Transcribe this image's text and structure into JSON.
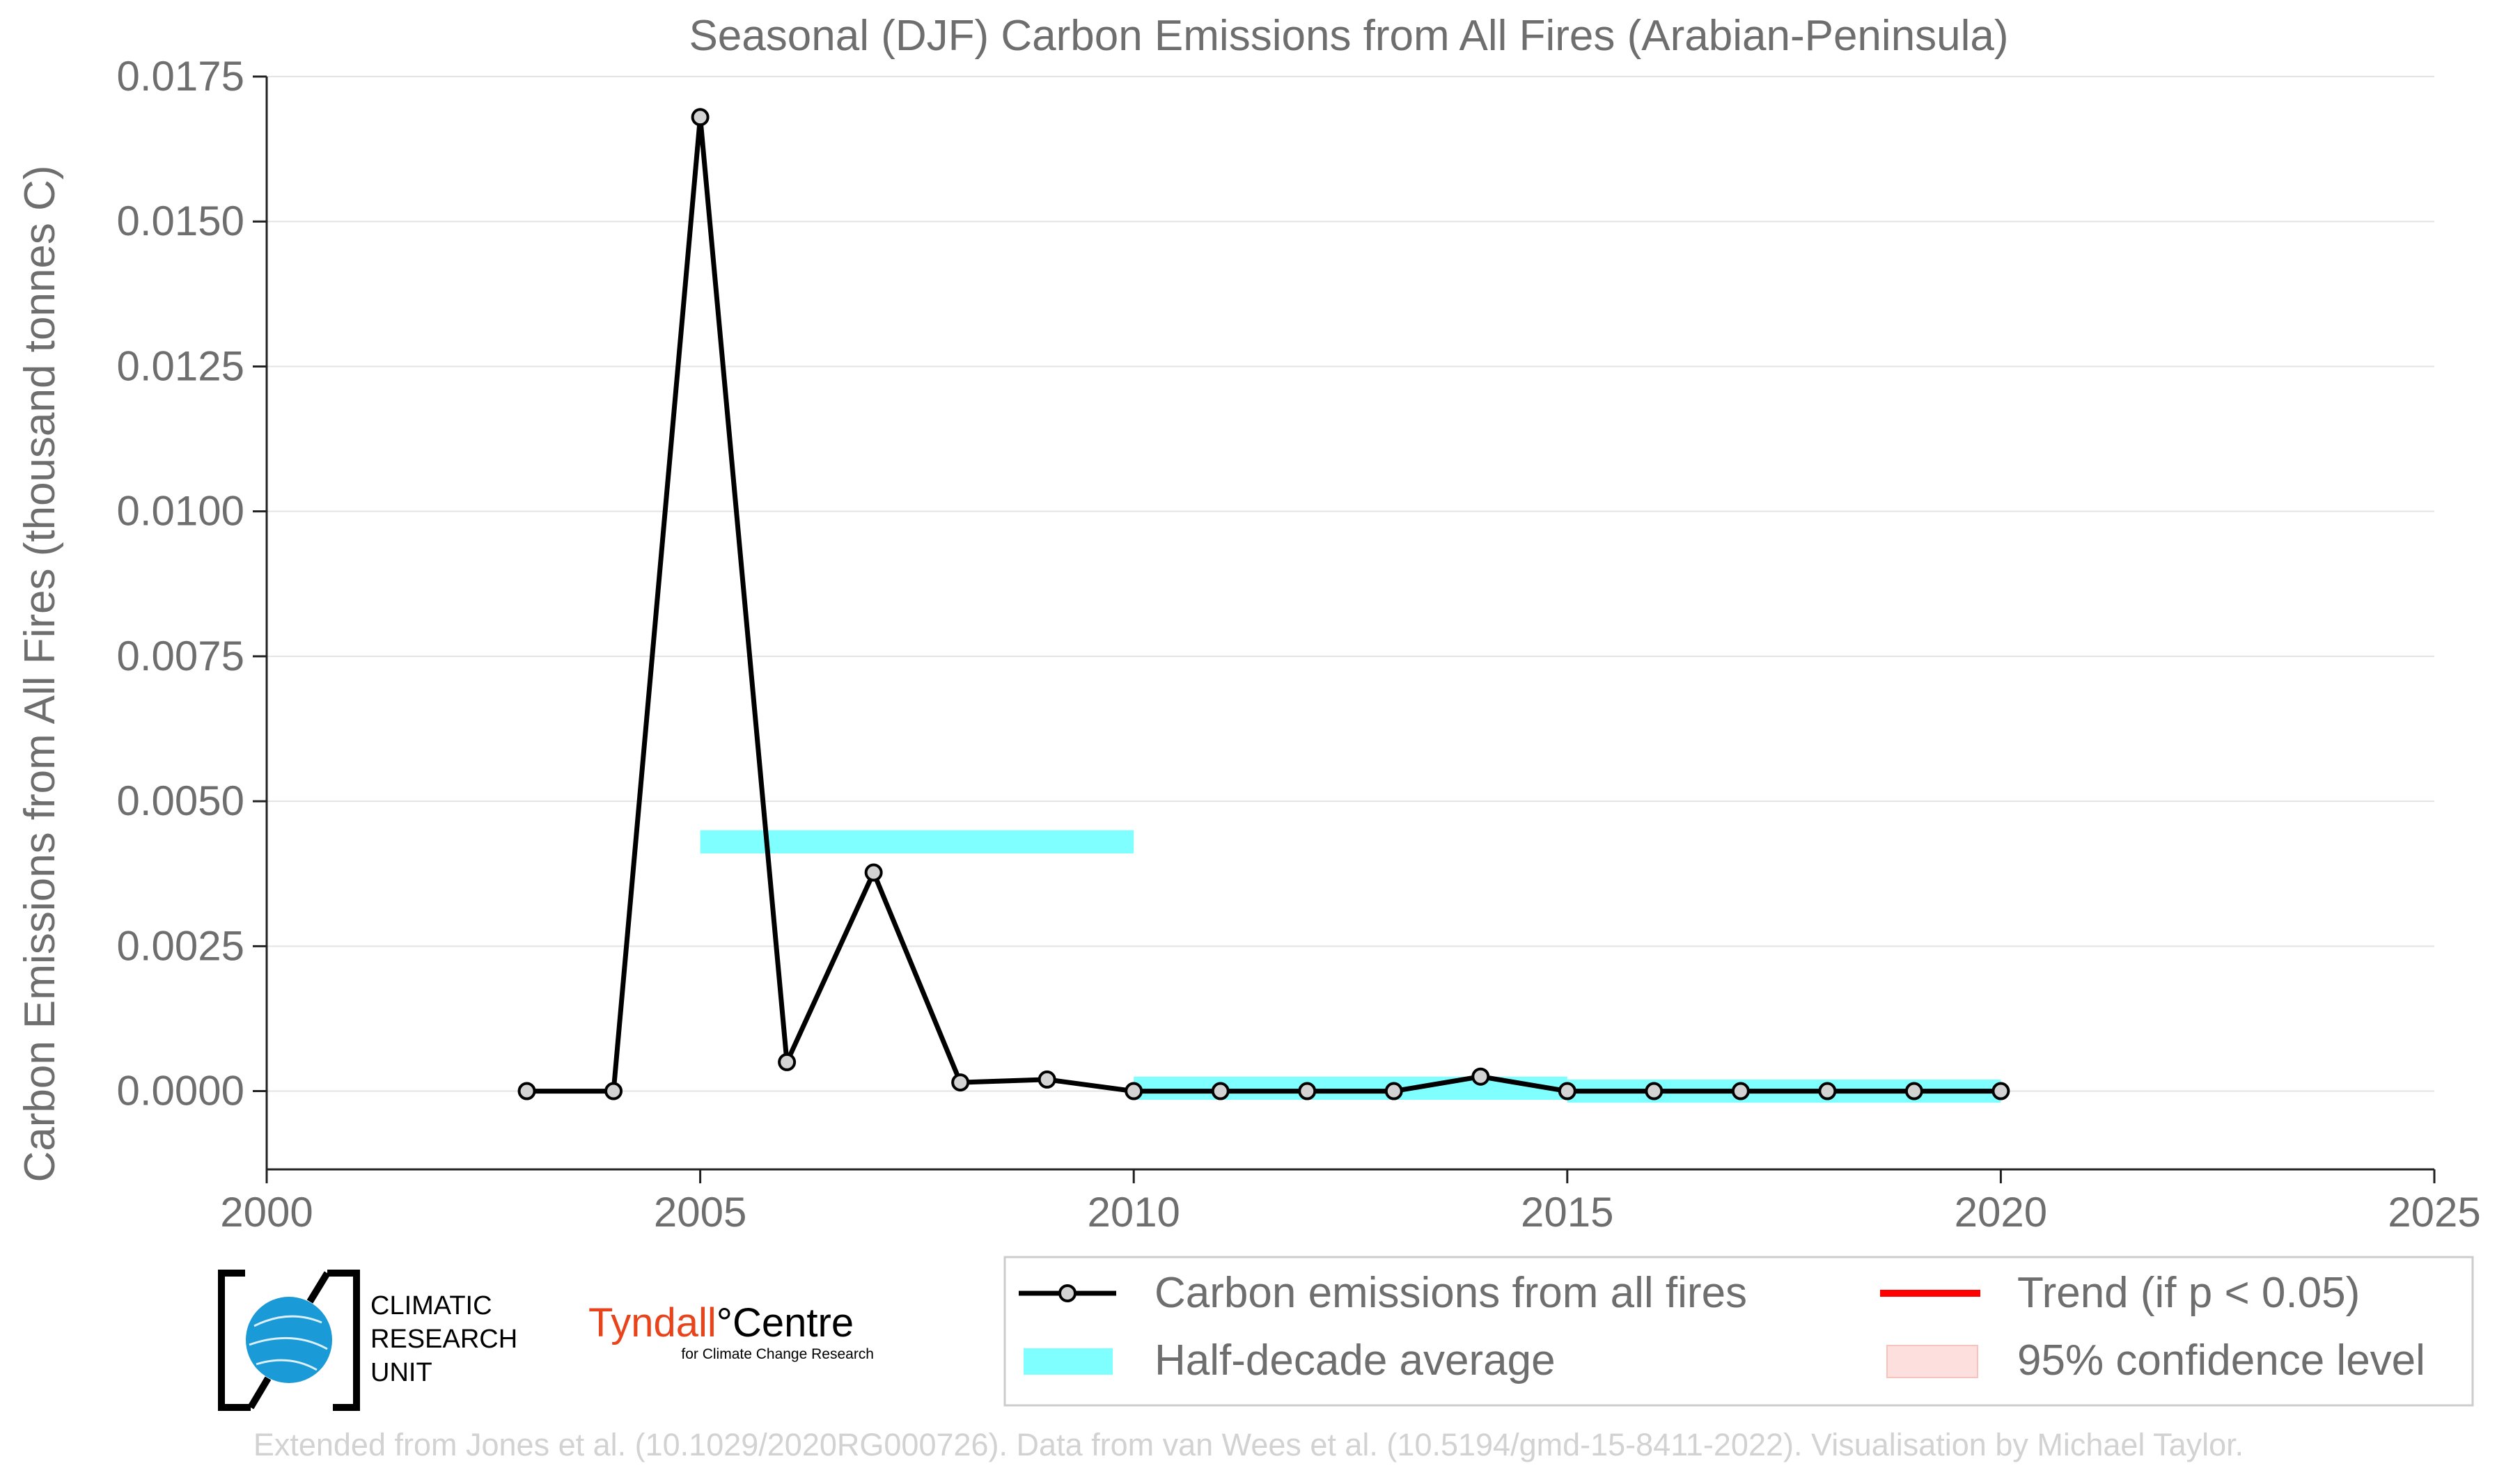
{
  "chart_data": {
    "type": "line",
    "title": "Seasonal (DJF) Carbon Emissions from All Fires (Arabian-Peninsula)",
    "xlabel": "",
    "ylabel": "Carbon Emissions from All Fires (thousand tonnes C)",
    "xlim": [
      2000,
      2025
    ],
    "ylim": [
      -0.00135,
      0.0175
    ],
    "xticks": [
      2000,
      2005,
      2010,
      2015,
      2020,
      2025
    ],
    "yticks": [
      0.0,
      0.0025,
      0.005,
      0.0075,
      0.01,
      0.0125,
      0.015,
      0.0175
    ],
    "ytick_labels": [
      "0.0000",
      "0.0025",
      "0.0050",
      "0.0075",
      "0.0100",
      "0.0125",
      "0.0150",
      "0.0175"
    ],
    "grid": "horizontal",
    "series": [
      {
        "name": "Carbon emissions from all fires",
        "color": "#000000",
        "marker_fill": "#d3d3d3",
        "x": [
          2003,
          2004,
          2005,
          2006,
          2007,
          2008,
          2009,
          2010,
          2011,
          2012,
          2013,
          2014,
          2015,
          2016,
          2017,
          2018,
          2019,
          2020
        ],
        "y": [
          0.0,
          0.0,
          0.0168,
          0.0005,
          0.00377,
          0.00015,
          0.0002,
          0.0,
          0.0,
          0.0,
          0.0,
          0.00025,
          0.0,
          0.0,
          0.0,
          0.0,
          0.0,
          0.0
        ]
      }
    ],
    "half_decade_average": {
      "name": "Half-decade average",
      "color": "#7fffff",
      "segments": [
        {
          "x_start": 2005,
          "x_end": 2010,
          "value": 0.0043
        },
        {
          "x_start": 2010,
          "x_end": 2015,
          "value": 5e-05
        },
        {
          "x_start": 2015,
          "x_end": 2020,
          "value": 0.0
        }
      ]
    },
    "legend": {
      "placement": "bottom-right",
      "entries": [
        {
          "label": "Carbon emissions from all fires",
          "kind": "line-marker",
          "color": "#000000"
        },
        {
          "label": "Trend (if p < 0.05)",
          "kind": "line",
          "color": "#ff0000"
        },
        {
          "label": "Half-decade average",
          "kind": "patch",
          "color": "#7fffff"
        },
        {
          "label": "95% confidence level",
          "kind": "patch",
          "color": "#fde0dd"
        }
      ]
    }
  },
  "logos": {
    "cru_lines": [
      "CLIMATIC",
      "RESEARCH",
      "UNIT"
    ],
    "tyndall_name": "Tyndall",
    "tyndall_degree": "°",
    "tyndall_centre": "Centre",
    "tyndall_sub": "for Climate Change Research",
    "cru_globe_color": "#1a9ad6",
    "tyndall_color": "#e8431b"
  },
  "credit": "Extended from Jones et al. (10.1029/2020RG000726). Data from van Wees et al. (10.5194/gmd-15-8411-2022). Visualisation by Michael Taylor."
}
